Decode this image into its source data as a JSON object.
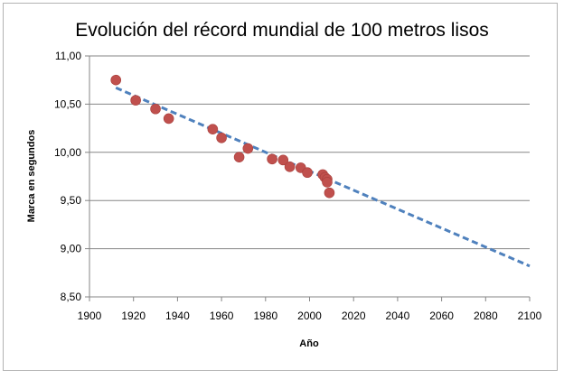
{
  "chart_data": {
    "type": "scatter",
    "title": "Evolución  del récord mundial  de 100 metros lisos",
    "xlabel": "Año",
    "ylabel": "Marca en segundos",
    "xlim": [
      1900,
      2100
    ],
    "ylim": [
      8.5,
      11.0
    ],
    "x_ticks": [
      "1900",
      "1920",
      "1940",
      "1960",
      "1980",
      "2000",
      "2020",
      "2040",
      "2060",
      "2080",
      "2100"
    ],
    "y_ticks": [
      "8,50",
      "9,00",
      "9,50",
      "10,00",
      "10,50",
      "11,00"
    ],
    "grid": "horizontal",
    "series": [
      {
        "color": "#c0504d",
        "points": [
          {
            "x": 1912,
            "y": 10.75
          },
          {
            "x": 1921,
            "y": 10.54
          },
          {
            "x": 1930,
            "y": 10.45
          },
          {
            "x": 1936,
            "y": 10.35
          },
          {
            "x": 1956,
            "y": 10.24
          },
          {
            "x": 1960,
            "y": 10.15
          },
          {
            "x": 1968,
            "y": 9.95
          },
          {
            "x": 1972,
            "y": 10.04
          },
          {
            "x": 1983,
            "y": 9.93
          },
          {
            "x": 1988,
            "y": 9.92
          },
          {
            "x": 1991,
            "y": 9.85
          },
          {
            "x": 1996,
            "y": 9.84
          },
          {
            "x": 1999,
            "y": 9.79
          },
          {
            "x": 2006,
            "y": 9.77
          },
          {
            "x": 2007,
            "y": 9.74
          },
          {
            "x": 2008,
            "y": 9.72
          },
          {
            "x": 2008,
            "y": 9.69
          },
          {
            "x": 2009,
            "y": 9.58
          }
        ]
      }
    ],
    "trendline": {
      "style": "dashed",
      "color": "#4f81bd",
      "x": [
        1912,
        2100
      ],
      "y": [
        10.67,
        8.82
      ]
    }
  }
}
